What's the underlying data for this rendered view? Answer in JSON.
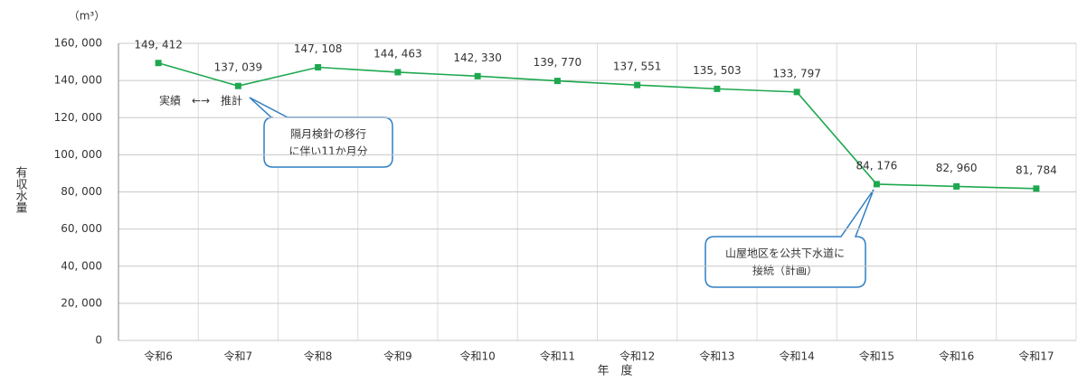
{
  "chart_data": {
    "type": "line",
    "unit_label": "（m³）",
    "y_axis_label": "有収水量",
    "x_axis_label": "年　度",
    "categories": [
      "令和6",
      "令和7",
      "令和8",
      "令和9",
      "令和10",
      "令和11",
      "令和12",
      "令和13",
      "令和14",
      "令和15",
      "令和16",
      "令和17"
    ],
    "series": [
      {
        "name": "有収水量",
        "color": "#1ea84f",
        "values": [
          149412,
          137039,
          147108,
          144463,
          142330,
          139770,
          137551,
          135503,
          133797,
          84176,
          82960,
          81784
        ],
        "value_labels": [
          "149, 412",
          "137, 039",
          "147, 108",
          "144, 463",
          "142, 330",
          "139, 770",
          "137, 551",
          "135, 503",
          "133, 797",
          "84, 176",
          "82, 960",
          "81, 784"
        ]
      }
    ],
    "ylim": [
      0,
      160000
    ],
    "yticks": [
      0,
      {
        "value": 20000,
        "label": "20, 000"
      },
      {
        "value": 40000,
        "label": "40, 000"
      },
      {
        "value": 60000,
        "label": "60, 000"
      },
      {
        "value": 80000,
        "label": "80, 000"
      },
      {
        "value": 100000,
        "label": "100, 000"
      },
      {
        "value": 120000,
        "label": "120, 000"
      },
      {
        "value": 140000,
        "label": "140, 000"
      },
      {
        "value": 160000,
        "label": "160, 000"
      }
    ],
    "grid": true,
    "annotations": {
      "period": "実績　←→　推計",
      "callout1": [
        "隔月検針の移行",
        "に伴い11か月分"
      ],
      "callout2": [
        "山屋地区を公共下水道に",
        "接続（計画）"
      ]
    }
  }
}
